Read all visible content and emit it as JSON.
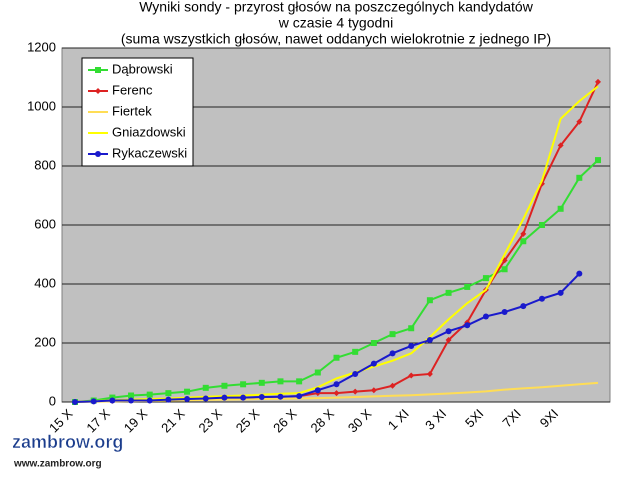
{
  "chart_data": {
    "type": "line",
    "title": "Wyniki sondy - przyrost głosów na poszczególnych kandydatów",
    "subtitle": [
      "w czasie 4 tygodni",
      "(suma wszystkich głosów, nawet oddanych wielokrotnie z jednego IP)"
    ],
    "categories": [
      "15 X",
      null,
      "17 X",
      null,
      "19 X",
      null,
      "21 X",
      null,
      "23 X",
      null,
      "25 X",
      null,
      "26 X",
      null,
      "28 X",
      null,
      "30 X",
      null,
      "1 XI",
      null,
      "3 XI",
      null,
      "5XI",
      null,
      "7XI",
      null,
      "9XI",
      null,
      null
    ],
    "series": [
      {
        "name": "Dąbrowski",
        "color": "#33dd33",
        "marker": "square",
        "values": [
          0,
          5,
          15,
          22,
          25,
          30,
          35,
          48,
          55,
          60,
          65,
          70,
          70,
          100,
          150,
          170,
          200,
          230,
          250,
          345,
          370,
          390,
          420,
          450,
          545,
          600,
          655,
          760,
          820
        ]
      },
      {
        "name": "Ferenc",
        "color": "#dd2222",
        "marker": "diamond",
        "values": [
          0,
          2,
          4,
          5,
          5,
          8,
          10,
          12,
          15,
          15,
          16,
          18,
          20,
          30,
          30,
          35,
          40,
          55,
          90,
          95,
          210,
          270,
          380,
          480,
          570,
          740,
          870,
          950,
          1085
        ]
      },
      {
        "name": "Fiertek",
        "color": "#ffdd55",
        "marker": "none",
        "values": [
          0,
          1,
          2,
          3,
          4,
          5,
          6,
          7,
          8,
          9,
          10,
          11,
          12,
          13,
          15,
          17,
          19,
          21,
          23,
          26,
          29,
          32,
          36,
          42,
          46,
          50,
          55,
          60,
          65
        ]
      },
      {
        "name": "Gniazdowski",
        "color": "#ffff00",
        "marker": "none",
        "values": [
          0,
          3,
          6,
          8,
          10,
          12,
          15,
          18,
          20,
          22,
          25,
          28,
          30,
          50,
          80,
          100,
          120,
          140,
          165,
          220,
          280,
          335,
          380,
          500,
          620,
          750,
          960,
          1020,
          1070
        ]
      },
      {
        "name": "Rykaczewski",
        "color": "#1a1acc",
        "marker": "circle",
        "values": [
          0,
          2,
          5,
          5,
          5,
          8,
          10,
          12,
          15,
          15,
          17,
          18,
          20,
          40,
          60,
          95,
          130,
          165,
          190,
          210,
          240,
          260,
          290,
          305,
          325,
          350,
          370,
          435,
          null
        ]
      }
    ],
    "ylim": [
      0,
      1200
    ],
    "yticks": [
      0,
      200,
      400,
      600,
      800,
      1000,
      1200
    ],
    "grid": true,
    "legend": "top-left",
    "watermark": [
      "zambrow.org",
      "www.zambrow.org"
    ]
  }
}
